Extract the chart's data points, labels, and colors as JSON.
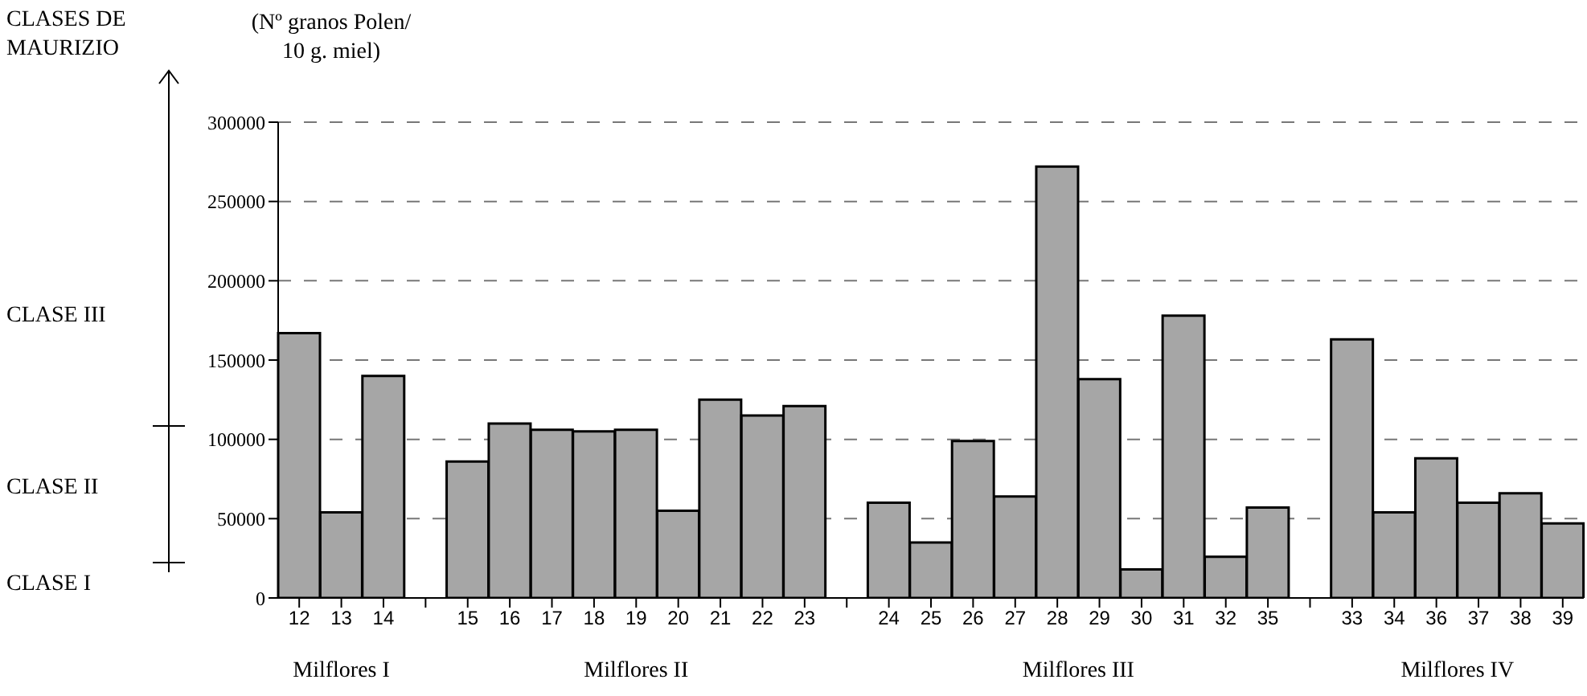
{
  "chart_data": {
    "type": "bar",
    "ylabel": "(Nº granos Polen/ 10 g. miel)",
    "categories": [
      "12",
      "13",
      "14",
      null,
      "15",
      "16",
      "17",
      "18",
      "19",
      "20",
      "21",
      "22",
      "23",
      null,
      "24",
      "25",
      "26",
      "27",
      "28",
      "29",
      "30",
      "31",
      "32",
      "35",
      null,
      "33",
      "34",
      "36",
      "37",
      "38",
      "39"
    ],
    "values": [
      167000,
      54000,
      140000,
      null,
      86000,
      110000,
      106000,
      105000,
      106000,
      55000,
      125000,
      115000,
      121000,
      null,
      60000,
      35000,
      99000,
      64000,
      272000,
      138000,
      18000,
      178000,
      26000,
      57000,
      null,
      163000,
      54000,
      88000,
      60000,
      66000,
      47000
    ],
    "color": "#a6a6a6",
    "ylim": [
      0,
      300000
    ],
    "yticks": [
      0,
      50000,
      100000,
      150000,
      200000,
      250000,
      300000
    ],
    "grid": "y",
    "annotations": [
      "CLASES DE MAURIZIO",
      "CLASE III",
      "CLASE II",
      "CLASE I",
      "Milflores I",
      "Milflores II",
      "Milflores III",
      "Milflores IV"
    ]
  }
}
